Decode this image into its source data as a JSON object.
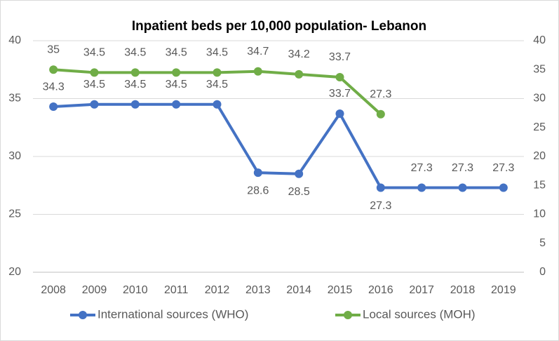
{
  "chart_data": {
    "type": "line",
    "title": "Inpatient beds per 10,000 population- Lebanon",
    "categories": [
      "2008",
      "2009",
      "2010",
      "2011",
      "2012",
      "2013",
      "2014",
      "2015",
      "2016",
      "2017",
      "2018",
      "2019"
    ],
    "series": [
      {
        "name": "International sources (WHO)",
        "color": "#4472c4",
        "axis": "y",
        "values": [
          34.3,
          34.5,
          34.5,
          34.5,
          34.5,
          28.6,
          28.5,
          33.7,
          27.3,
          27.3,
          27.3,
          27.3
        ]
      },
      {
        "name": "Local sources (MOH)",
        "color": "#70ad47",
        "axis": "y2",
        "values": [
          35,
          34.5,
          34.5,
          34.5,
          34.5,
          34.7,
          34.2,
          33.7,
          27.3,
          null,
          null,
          null
        ]
      }
    ],
    "ylim": [
      20,
      40
    ],
    "yticks": [
      20,
      25,
      30,
      35,
      40
    ],
    "y2lim": [
      0,
      40
    ],
    "y2ticks": [
      0,
      5,
      10,
      15,
      20,
      25,
      30,
      35,
      40
    ],
    "grid": true,
    "legend": "bottom"
  }
}
